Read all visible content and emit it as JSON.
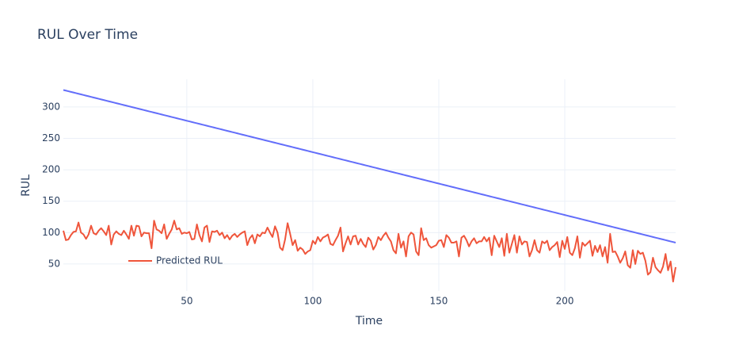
{
  "chart_data": {
    "type": "line",
    "title": "RUL Over Time",
    "xlabel": "Time",
    "ylabel": "RUL",
    "x": [
      1,
      2,
      3,
      4,
      5,
      6,
      7,
      8,
      9,
      10,
      11,
      12,
      13,
      14,
      15,
      16,
      17,
      18,
      19,
      20,
      21,
      22,
      23,
      24,
      25,
      26,
      27,
      28,
      29,
      30,
      31,
      32,
      33,
      34,
      35,
      36,
      37,
      38,
      39,
      40,
      41,
      42,
      43,
      44,
      45,
      46,
      47,
      48,
      49,
      50,
      51,
      52,
      53,
      54,
      55,
      56,
      57,
      58,
      59,
      60,
      61,
      62,
      63,
      64,
      65,
      66,
      67,
      68,
      69,
      70,
      71,
      72,
      73,
      74,
      75,
      76,
      77,
      78,
      79,
      80,
      81,
      82,
      83,
      84,
      85,
      86,
      87,
      88,
      89,
      90,
      91,
      92,
      93,
      94,
      95,
      96,
      97,
      98,
      99,
      100,
      101,
      102,
      103,
      104,
      105,
      106,
      107,
      108,
      109,
      110,
      111,
      112,
      113,
      114,
      115,
      116,
      117,
      118,
      119,
      120,
      121,
      122,
      123,
      124,
      125,
      126,
      127,
      128,
      129,
      130,
      131,
      132,
      133,
      134,
      135,
      136,
      137,
      138,
      139,
      140,
      141,
      142,
      143,
      144,
      145,
      146,
      147,
      148,
      149,
      150,
      151,
      152,
      153,
      154,
      155,
      156,
      157,
      158,
      159,
      160,
      161,
      162,
      163,
      164,
      165,
      166,
      167,
      168,
      169,
      170,
      171,
      172,
      173,
      174,
      175,
      176,
      177,
      178,
      179,
      180,
      181,
      182,
      183,
      184,
      185,
      186,
      187,
      188,
      189,
      190,
      191,
      192,
      193,
      194,
      195,
      196,
      197,
      198,
      199,
      200,
      201,
      202,
      203,
      204,
      205,
      206,
      207,
      208,
      209,
      210,
      211,
      212,
      213,
      214,
      215,
      216,
      217,
      218,
      219,
      220,
      221,
      222,
      223,
      224,
      225,
      226,
      227,
      228,
      229,
      230,
      231,
      232,
      233,
      234,
      235,
      236,
      237,
      238,
      239,
      240,
      241,
      242,
      243,
      244
    ],
    "series": [
      {
        "color": "#636efa",
        "values": [
          327,
          326,
          325,
          324,
          323,
          322,
          321,
          320,
          319,
          318,
          317,
          316,
          315,
          314,
          313,
          312,
          311,
          310,
          309,
          308,
          307,
          306,
          305,
          304,
          303,
          302,
          301,
          300,
          299,
          298,
          297,
          296,
          295,
          294,
          293,
          292,
          291,
          290,
          289,
          288,
          287,
          286,
          285,
          284,
          283,
          282,
          281,
          280,
          279,
          278,
          277,
          276,
          275,
          274,
          273,
          272,
          271,
          270,
          269,
          268,
          267,
          266,
          265,
          264,
          263,
          262,
          261,
          260,
          259,
          258,
          257,
          256,
          255,
          254,
          253,
          252,
          251,
          250,
          249,
          248,
          247,
          246,
          245,
          244,
          243,
          242,
          241,
          240,
          239,
          238,
          237,
          236,
          235,
          234,
          233,
          232,
          231,
          230,
          229,
          228,
          227,
          226,
          225,
          224,
          223,
          222,
          221,
          220,
          219,
          218,
          217,
          216,
          215,
          214,
          213,
          212,
          211,
          210,
          209,
          208,
          207,
          206,
          205,
          204,
          203,
          202,
          201,
          200,
          199,
          198,
          197,
          196,
          195,
          194,
          193,
          192,
          191,
          190,
          189,
          188,
          187,
          186,
          185,
          184,
          183,
          182,
          181,
          180,
          179,
          178,
          177,
          176,
          175,
          174,
          173,
          172,
          171,
          170,
          169,
          168,
          167,
          166,
          165,
          164,
          163,
          162,
          161,
          160,
          159,
          158,
          157,
          156,
          155,
          154,
          153,
          152,
          151,
          150,
          149,
          148,
          147,
          146,
          145,
          144,
          143,
          142,
          141,
          140,
          139,
          138,
          137,
          136,
          135,
          134,
          133,
          132,
          131,
          130,
          129,
          128,
          127,
          126,
          125,
          124,
          123,
          122,
          121,
          120,
          119,
          118,
          117,
          116,
          115,
          114,
          113,
          112,
          111,
          110,
          109,
          108,
          107,
          106,
          105,
          104,
          103,
          102,
          101,
          100,
          99,
          98,
          97,
          96,
          95,
          94,
          93,
          92,
          91,
          90,
          89,
          88,
          87,
          86,
          85,
          84
        ]
      },
      {
        "name": "Predicted RUL",
        "color": "#EF553B",
        "values": [
          103,
          88,
          89,
          96,
          101,
          102,
          116,
          100,
          97,
          90,
          97,
          111,
          99,
          97,
          103,
          107,
          102,
          96,
          111,
          81,
          97,
          102,
          98,
          96,
          103,
          97,
          90,
          111,
          95,
          111,
          110,
          94,
          100,
          99,
          99,
          75,
          119,
          105,
          103,
          99,
          113,
          90,
          98,
          105,
          119,
          105,
          107,
          98,
          100,
          99,
          101,
          89,
          90,
          113,
          96,
          86,
          108,
          111,
          85,
          102,
          101,
          103,
          96,
          100,
          91,
          96,
          89,
          95,
          98,
          93,
          97,
          100,
          102,
          80,
          91,
          96,
          83,
          97,
          94,
          100,
          99,
          108,
          100,
          93,
          110,
          100,
          76,
          72,
          89,
          115,
          98,
          80,
          88,
          71,
          76,
          73,
          66,
          70,
          72,
          87,
          82,
          93,
          86,
          92,
          94,
          97,
          82,
          80,
          88,
          95,
          108,
          70,
          83,
          94,
          81,
          94,
          95,
          81,
          90,
          82,
          77,
          92,
          87,
          73,
          80,
          93,
          88,
          95,
          100,
          92,
          86,
          72,
          67,
          98,
          76,
          86,
          62,
          94,
          100,
          97,
          70,
          64,
          107,
          88,
          91,
          80,
          76,
          78,
          80,
          87,
          88,
          77,
          96,
          92,
          84,
          84,
          86,
          62,
          92,
          95,
          88,
          78,
          86,
          91,
          83,
          86,
          86,
          93,
          86,
          92,
          64,
          95,
          86,
          77,
          91,
          63,
          98,
          68,
          82,
          96,
          68,
          94,
          81,
          86,
          85,
          62,
          72,
          88,
          72,
          68,
          86,
          83,
          87,
          72,
          77,
          80,
          85,
          61,
          87,
          74,
          93,
          68,
          64,
          75,
          94,
          60,
          84,
          79,
          83,
          87,
          63,
          79,
          69,
          80,
          62,
          77,
          52,
          98,
          69,
          70,
          62,
          52,
          59,
          70,
          48,
          44,
          72,
          50,
          71,
          66,
          68,
          55,
          33,
          37,
          60,
          45,
          40,
          36,
          46,
          66,
          40,
          54,
          22,
          45
        ]
      }
    ],
    "xlim": [
      1,
      244
    ],
    "ylim": [
      7,
      344
    ],
    "xticks": [
      50,
      100,
      150,
      200
    ],
    "yticks": [
      50,
      100,
      150,
      200,
      250,
      300
    ],
    "grid": true,
    "legend": "lower left"
  }
}
